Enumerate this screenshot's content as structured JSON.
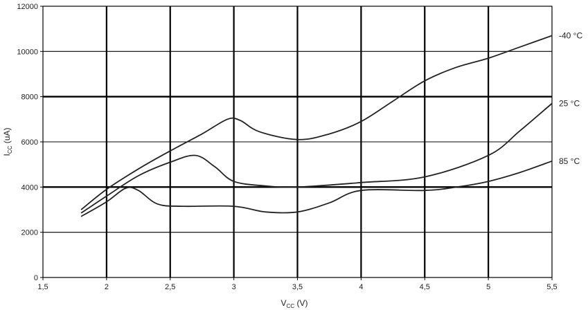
{
  "chart_data": {
    "type": "line",
    "x_axis": {
      "label_main": "V",
      "label_sub": "CC",
      "label_unit": " (V)",
      "min": 1.5,
      "max": 5.5,
      "ticks": [
        1.5,
        2,
        2.5,
        3,
        3.5,
        4,
        4.5,
        5,
        5.5
      ],
      "tick_labels": [
        "1,5",
        "2",
        "2,5",
        "3",
        "3,5",
        "4",
        "4,5",
        "5",
        "5,5"
      ]
    },
    "y_axis": {
      "label_main": "I",
      "label_sub": "CC",
      "label_unit": " (uA)",
      "min": 0,
      "max": 12000,
      "ticks": [
        0,
        2000,
        4000,
        6000,
        8000,
        10000,
        12000
      ],
      "tick_labels": [
        "0",
        "2000",
        "4000",
        "6000",
        "8000",
        "10000",
        "12000"
      ]
    },
    "grid": true,
    "series": [
      {
        "name": "-40 °C",
        "points": [
          [
            1.8,
            3000
          ],
          [
            2.0,
            3900
          ],
          [
            2.25,
            4800
          ],
          [
            2.5,
            5600
          ],
          [
            2.75,
            6350
          ],
          [
            2.95,
            7000
          ],
          [
            3.05,
            6950
          ],
          [
            3.2,
            6450
          ],
          [
            3.5,
            6100
          ],
          [
            3.75,
            6350
          ],
          [
            4.0,
            6900
          ],
          [
            4.25,
            7800
          ],
          [
            4.5,
            8700
          ],
          [
            4.75,
            9300
          ],
          [
            5.0,
            9700
          ],
          [
            5.25,
            10200
          ],
          [
            5.5,
            10700
          ]
        ]
      },
      {
        "name": "25 °C",
        "points": [
          [
            1.8,
            2850
          ],
          [
            2.0,
            3600
          ],
          [
            2.25,
            4500
          ],
          [
            2.5,
            5100
          ],
          [
            2.7,
            5400
          ],
          [
            2.85,
            4900
          ],
          [
            3.0,
            4250
          ],
          [
            3.25,
            4050
          ],
          [
            3.5,
            4000
          ],
          [
            4.0,
            4200
          ],
          [
            4.5,
            4450
          ],
          [
            5.0,
            5400
          ],
          [
            5.25,
            6500
          ],
          [
            5.5,
            7700
          ]
        ]
      },
      {
        "name": "85 °C",
        "points": [
          [
            1.8,
            2700
          ],
          [
            2.0,
            3350
          ],
          [
            2.15,
            3950
          ],
          [
            2.25,
            3850
          ],
          [
            2.4,
            3250
          ],
          [
            2.6,
            3150
          ],
          [
            3.0,
            3150
          ],
          [
            3.25,
            2900
          ],
          [
            3.5,
            2900
          ],
          [
            3.75,
            3300
          ],
          [
            4.0,
            3850
          ],
          [
            4.5,
            3850
          ],
          [
            4.75,
            4000
          ],
          [
            5.0,
            4250
          ],
          [
            5.25,
            4650
          ],
          [
            5.5,
            5150
          ]
        ]
      }
    ]
  }
}
